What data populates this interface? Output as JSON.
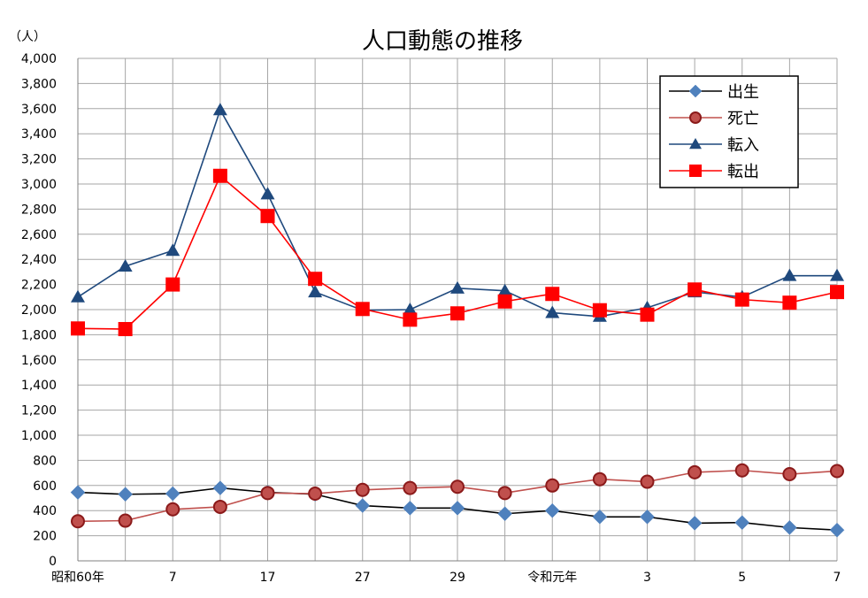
{
  "chart_data": {
    "type": "line",
    "title": "人口動態の推移",
    "ylabel": "（人）",
    "xlabel": "",
    "ylim": [
      0,
      4000
    ],
    "ytick_step": 200,
    "grid": true,
    "legend_position": "top-right",
    "x_tick_labels": [
      "昭和60年",
      "",
      "7",
      "",
      "17",
      "",
      "27",
      "",
      "29",
      "",
      "令和元年",
      "",
      "3",
      "",
      "5",
      "",
      "7"
    ],
    "y_tick_labels": [
      "0",
      "200",
      "400",
      "600",
      "800",
      "1,000",
      "1,200",
      "1,400",
      "1,600",
      "1,800",
      "2,000",
      "2,200",
      "2,400",
      "2,600",
      "2,800",
      "3,000",
      "3,200",
      "3,400",
      "3,600",
      "3,800",
      "4,000"
    ],
    "series": [
      {
        "name": "出生",
        "line_color": "#000000",
        "marker": "diamond",
        "marker_color": "#4f81bd",
        "values": [
          545,
          530,
          535,
          580,
          545,
          530,
          440,
          420,
          420,
          375,
          400,
          350,
          350,
          300,
          305,
          265,
          245
        ]
      },
      {
        "name": "死亡",
        "line_color": "#c0504d",
        "marker": "circle",
        "marker_color": "#c0504d",
        "values": [
          315,
          320,
          410,
          430,
          540,
          535,
          565,
          580,
          590,
          540,
          600,
          650,
          630,
          705,
          720,
          690,
          715
        ]
      },
      {
        "name": "転入",
        "line_color": "#1f497d",
        "marker": "triangle",
        "marker_color": "#1f497d",
        "values": [
          2100,
          2345,
          2470,
          3590,
          2920,
          2140,
          1995,
          2000,
          2170,
          2150,
          1975,
          1945,
          2015,
          2140,
          2100,
          2270,
          2270
        ]
      },
      {
        "name": "転出",
        "line_color": "#ff0000",
        "marker": "square",
        "marker_color": "#ff0000",
        "values": [
          1850,
          1845,
          2200,
          3065,
          2745,
          2245,
          2005,
          1920,
          1970,
          2065,
          2125,
          1995,
          1960,
          2160,
          2080,
          2055,
          2140
        ]
      }
    ]
  }
}
